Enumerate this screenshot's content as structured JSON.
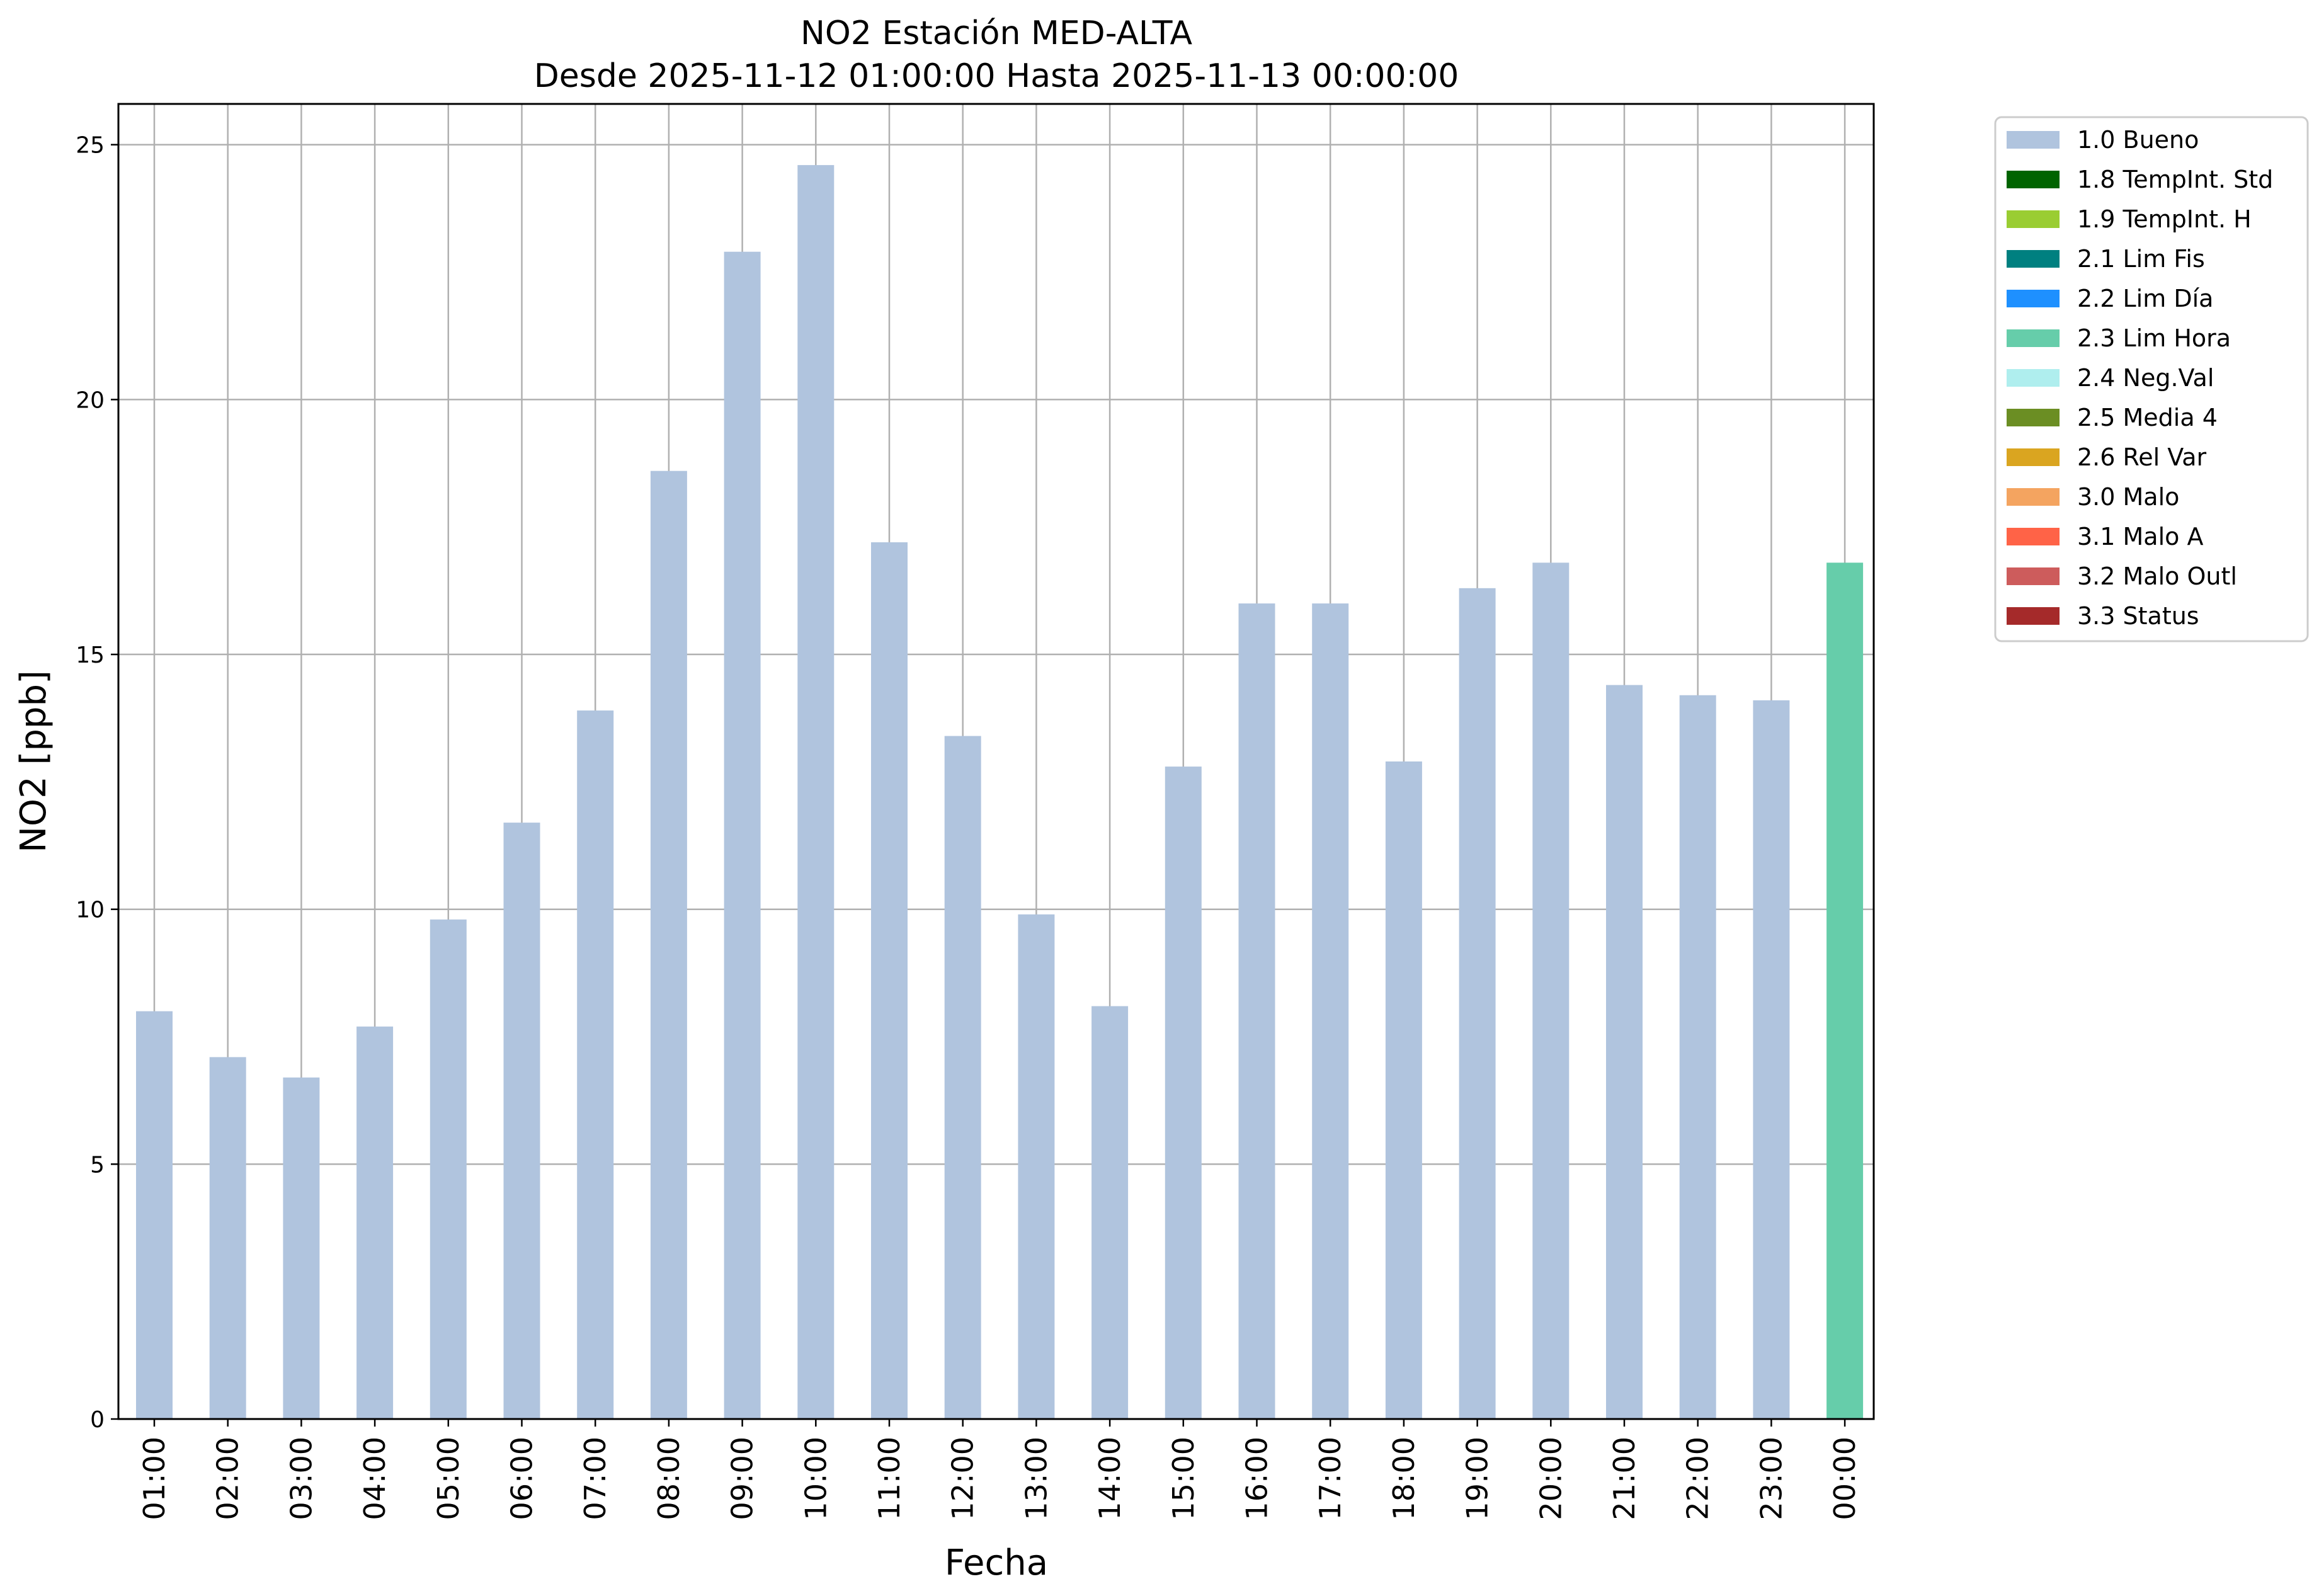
{
  "chart_data": {
    "type": "bar",
    "title_line1": "NO2 Estación MED-ALTA",
    "title_line2": "Desde 2025-11-12 01:00:00 Hasta 2025-11-13 00:00:00",
    "xlabel": "Fecha",
    "ylabel": "NO2 [ppb]",
    "ylim": [
      0,
      25.8
    ],
    "yticks": [
      0,
      5,
      10,
      15,
      20,
      25
    ],
    "grid": true,
    "legend_placement": "outside-top-right",
    "categories": [
      "01:00",
      "02:00",
      "03:00",
      "04:00",
      "05:00",
      "06:00",
      "07:00",
      "08:00",
      "09:00",
      "10:00",
      "11:00",
      "12:00",
      "13:00",
      "14:00",
      "15:00",
      "16:00",
      "17:00",
      "18:00",
      "19:00",
      "20:00",
      "21:00",
      "22:00",
      "23:00",
      "00:00"
    ],
    "values": [
      8.0,
      7.1,
      6.7,
      7.7,
      9.8,
      11.7,
      13.9,
      18.6,
      22.9,
      24.6,
      17.2,
      13.4,
      9.9,
      8.1,
      12.8,
      16.0,
      16.0,
      12.9,
      16.3,
      16.8,
      14.4,
      14.2,
      14.1,
      16.8
    ],
    "flags": [
      "1.0 Bueno",
      "1.0 Bueno",
      "1.0 Bueno",
      "1.0 Bueno",
      "1.0 Bueno",
      "1.0 Bueno",
      "1.0 Bueno",
      "1.0 Bueno",
      "1.0 Bueno",
      "1.0 Bueno",
      "1.0 Bueno",
      "1.0 Bueno",
      "1.0 Bueno",
      "1.0 Bueno",
      "1.0 Bueno",
      "1.0 Bueno",
      "1.0 Bueno",
      "1.0 Bueno",
      "1.0 Bueno",
      "1.0 Bueno",
      "1.0 Bueno",
      "1.0 Bueno",
      "1.0 Bueno",
      "2.3 Lim Hora"
    ],
    "legend": [
      {
        "label": "1.0 Bueno",
        "color": "#b0c4de"
      },
      {
        "label": "1.8 TempInt. Std",
        "color": "#006400"
      },
      {
        "label": "1.9 TempInt. H",
        "color": "#9acd32"
      },
      {
        "label": "2.1 Lim Fis",
        "color": "#008080"
      },
      {
        "label": "2.2 Lim Día",
        "color": "#1e90ff"
      },
      {
        "label": "2.3 Lim Hora",
        "color": "#66cdaa"
      },
      {
        "label": "2.4 Neg.Val",
        "color": "#afeeee"
      },
      {
        "label": "2.5 Media 4",
        "color": "#6b8e23"
      },
      {
        "label": "2.6 Rel Var",
        "color": "#daa520"
      },
      {
        "label": "3.0 Malo",
        "color": "#f4a460"
      },
      {
        "label": "3.1 Malo A",
        "color": "#ff6347"
      },
      {
        "label": "3.2 Malo Outl",
        "color": "#cd5c5c"
      },
      {
        "label": "3.3 Status",
        "color": "#a52a2a"
      }
    ]
  }
}
